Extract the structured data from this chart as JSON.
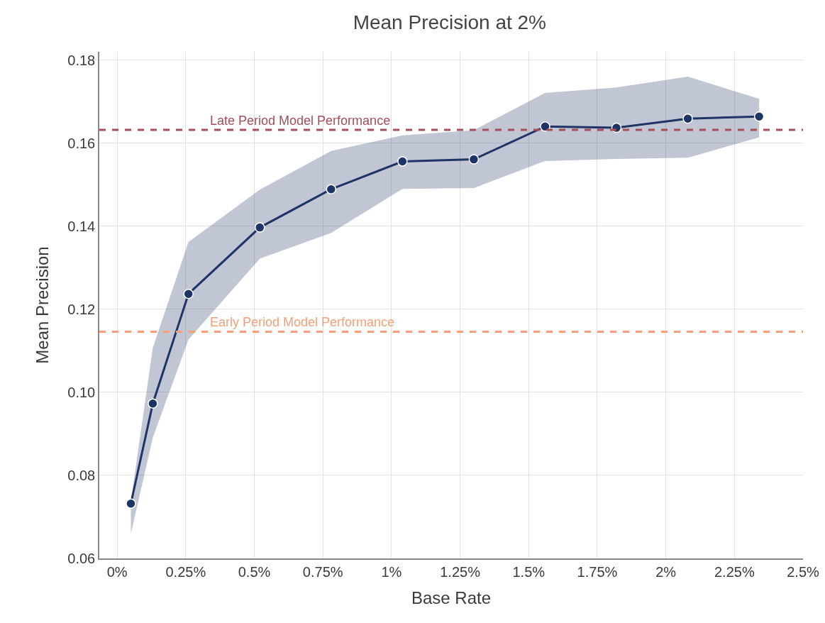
{
  "chart_data": {
    "type": "line",
    "title": "Mean Precision at 2%",
    "xlabel": "Base Rate",
    "ylabel": "Mean Precision",
    "x": [
      0.05,
      0.13,
      0.26,
      0.52,
      0.78,
      1.04,
      1.3,
      1.56,
      1.82,
      2.08,
      2.34
    ],
    "series": [
      {
        "color": "#1f3466",
        "values": [
          0.0732,
          0.0973,
          0.1237,
          0.1397,
          0.1489,
          0.1556,
          0.1561,
          0.164,
          0.1637,
          0.1659,
          0.1664
        ],
        "lower": [
          0.066,
          0.0891,
          0.1127,
          0.1322,
          0.1384,
          0.149,
          0.1492,
          0.1557,
          0.1562,
          0.1565,
          0.1614
        ],
        "upper": [
          0.0738,
          0.1107,
          0.1362,
          0.1488,
          0.1581,
          0.1619,
          0.1631,
          0.1721,
          0.1734,
          0.176,
          0.1707
        ]
      }
    ],
    "ref_lines": [
      {
        "axis": "y",
        "value": 0.1632,
        "label": "Late Period Model Performance",
        "color": "#a34f5a",
        "line_style": "dashed"
      },
      {
        "axis": "y",
        "value": 0.1146,
        "label": "Early Period Model Performance",
        "color": "#f4a07a",
        "line_style": "dashed"
      }
    ],
    "xlim": [
      -0.065,
      2.5
    ],
    "ylim": [
      0.06,
      0.182
    ],
    "xticks": [
      {
        "value": 0,
        "label": "0%"
      },
      {
        "value": 0.25,
        "label": "0.25%"
      },
      {
        "value": 0.5,
        "label": "0.5%"
      },
      {
        "value": 0.75,
        "label": "0.75%"
      },
      {
        "value": 1,
        "label": "1%"
      },
      {
        "value": 1.25,
        "label": "1.25%"
      },
      {
        "value": 1.5,
        "label": "1.5%"
      },
      {
        "value": 1.75,
        "label": "1.75%"
      },
      {
        "value": 2,
        "label": "2%"
      },
      {
        "value": 2.25,
        "label": "2.25%"
      },
      {
        "value": 2.5,
        "label": "2.5%"
      }
    ],
    "yticks": [
      0.06,
      0.08,
      {
        "value": 0.1,
        "label": "0.10"
      },
      0.12,
      0.14,
      0.16,
      0.18
    ],
    "grid": true,
    "marker": "circle",
    "line_style": "solid"
  }
}
